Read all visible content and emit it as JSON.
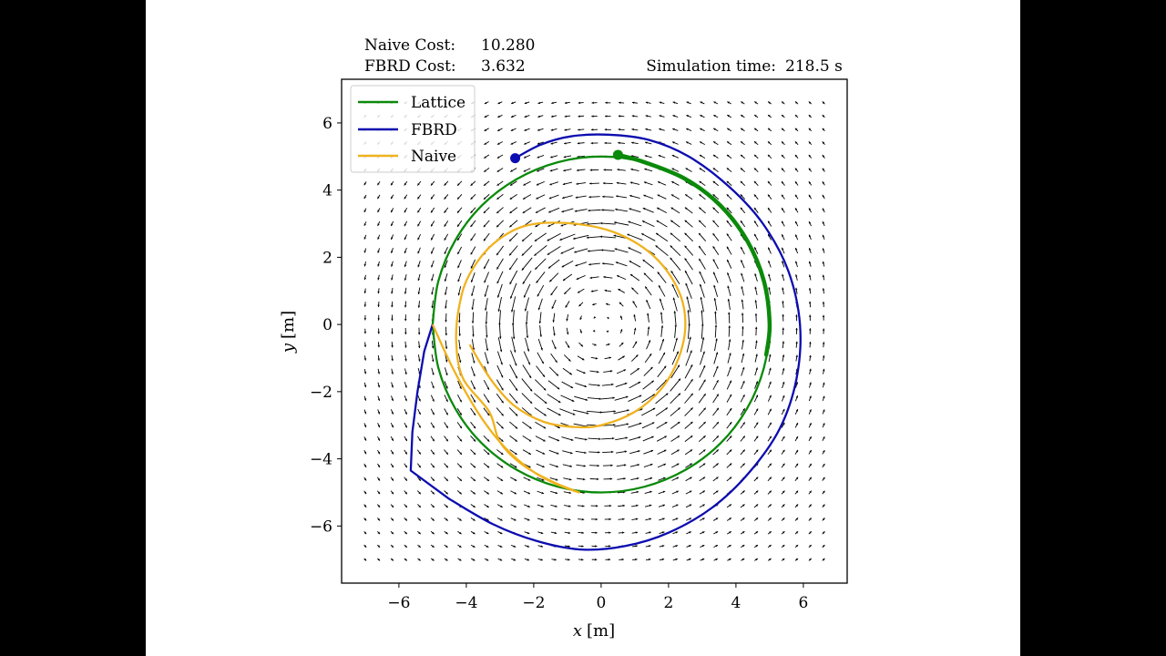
{
  "header": {
    "naive_cost_label": "Naive Cost:",
    "naive_cost_value": "10.280",
    "fbrd_cost_label": "FBRD Cost:",
    "fbrd_cost_value": "3.632",
    "sim_time_label": "Simulation time:",
    "sim_time_value": "218.5 s"
  },
  "colors": {
    "lattice": "#0a8a0a",
    "fbrd": "#0c0cb0",
    "naive": "#f0b21e",
    "arrow": "#000000",
    "frame": "#000000"
  },
  "chart_data": {
    "type": "line",
    "xlabel_var": "x",
    "xlabel_unit": "[m]",
    "ylabel_var": "y",
    "ylabel_unit": "[m]",
    "xlim": [
      -7.7,
      7.3
    ],
    "ylim": [
      -7.7,
      7.3
    ],
    "xticks": [
      -6,
      -4,
      -2,
      0,
      2,
      4,
      6
    ],
    "yticks": [
      -6,
      -4,
      -2,
      0,
      2,
      4,
      6
    ],
    "tick_labels": [
      "−6",
      "−4",
      "−2",
      "0",
      "2",
      "4",
      "6"
    ],
    "grid": false,
    "legend": {
      "position": "top-left",
      "entries": [
        {
          "label": "Lattice",
          "series": "lattice"
        },
        {
          "label": "FBRD",
          "series": "fbrd"
        },
        {
          "label": "Naive",
          "series": "naive"
        }
      ]
    },
    "quiver": {
      "x_range": [
        -7,
        6.7
      ],
      "y_range": [
        -7,
        6.7
      ],
      "spacing": 0.4,
      "field": "vortex centered at origin, counter-clockwise",
      "core_radius": 2.8
    },
    "series": [
      {
        "name": "lattice",
        "label": "Lattice",
        "color": "#0a8a0a",
        "points": [
          [
            -5,
            0
          ],
          [
            -4.83,
            1.29
          ],
          [
            -4.33,
            2.5
          ],
          [
            -3.54,
            3.54
          ],
          [
            -2.5,
            4.33
          ],
          [
            -1.29,
            4.83
          ],
          [
            0,
            5
          ],
          [
            1.29,
            4.83
          ],
          [
            2.5,
            4.33
          ],
          [
            3.54,
            3.54
          ],
          [
            4.33,
            2.5
          ],
          [
            4.83,
            1.29
          ],
          [
            5,
            0
          ],
          [
            4.83,
            -1.29
          ],
          [
            4.33,
            -2.5
          ],
          [
            3.54,
            -3.54
          ],
          [
            2.5,
            -4.33
          ],
          [
            1.29,
            -4.83
          ],
          [
            0,
            -5
          ],
          [
            -1.29,
            -4.83
          ],
          [
            -2.5,
            -4.33
          ],
          [
            -3.54,
            -3.54
          ],
          [
            -4.33,
            -2.5
          ],
          [
            -4.83,
            -1.29
          ],
          [
            -5,
            0
          ]
        ],
        "thick_segment": [
          [
            0.5,
            5.05
          ],
          [
            1.29,
            4.83
          ],
          [
            2.5,
            4.33
          ],
          [
            3.54,
            3.54
          ],
          [
            4.33,
            2.5
          ],
          [
            4.83,
            1.29
          ],
          [
            5,
            0
          ],
          [
            4.9,
            -0.9
          ]
        ],
        "marker": [
          0.5,
          5.05
        ]
      },
      {
        "name": "fbrd",
        "label": "FBRD",
        "color": "#0c0cb0",
        "points": [
          [
            -2.55,
            4.95
          ],
          [
            -1.8,
            5.35
          ],
          [
            -0.9,
            5.6
          ],
          [
            0.2,
            5.65
          ],
          [
            1.4,
            5.5
          ],
          [
            2.6,
            5.0
          ],
          [
            3.8,
            4.1
          ],
          [
            4.8,
            3.0
          ],
          [
            5.55,
            1.6
          ],
          [
            5.9,
            0.0
          ],
          [
            5.8,
            -1.6
          ],
          [
            5.3,
            -3.1
          ],
          [
            4.4,
            -4.4
          ],
          [
            3.3,
            -5.45
          ],
          [
            2.0,
            -6.2
          ],
          [
            0.7,
            -6.6
          ],
          [
            -0.6,
            -6.7
          ],
          [
            -1.9,
            -6.45
          ],
          [
            -3.2,
            -5.95
          ],
          [
            -4.5,
            -5.2
          ],
          [
            -5.65,
            -4.35
          ],
          [
            -5.6,
            -3.2
          ],
          [
            -5.45,
            -2.0
          ],
          [
            -5.25,
            -0.8
          ],
          [
            -5.0,
            0.0
          ]
        ],
        "marker": [
          -2.55,
          4.95
        ]
      },
      {
        "name": "naive",
        "label": "Naive",
        "color": "#f0b21e",
        "points": [
          [
            -5,
            0
          ],
          [
            -4.4,
            -1.3
          ],
          [
            -3.7,
            -2.55
          ],
          [
            -3.0,
            -3.5
          ],
          [
            -2.2,
            -4.25
          ],
          [
            -1.45,
            -4.7
          ],
          [
            -0.65,
            -5.0
          ],
          [
            -1.4,
            -4.7
          ],
          [
            -2.3,
            -4.2
          ],
          [
            -3.0,
            -3.5
          ],
          [
            -3.32,
            -2.6
          ],
          [
            -4.1,
            -1.6
          ],
          [
            -4.3,
            -0.5
          ],
          [
            -4.2,
            0.6
          ],
          [
            -3.9,
            1.5
          ],
          [
            -3.2,
            2.4
          ],
          [
            -2.2,
            2.95
          ],
          [
            -0.8,
            3.0
          ],
          [
            0.5,
            2.7
          ],
          [
            1.6,
            2.0
          ],
          [
            2.3,
            1.0
          ],
          [
            2.5,
            0
          ],
          [
            2.3,
            -1.0
          ],
          [
            1.8,
            -1.9
          ],
          [
            1.0,
            -2.6
          ],
          [
            0,
            -3.0
          ],
          [
            -0.8,
            -3.05
          ],
          [
            -1.7,
            -2.9
          ],
          [
            -2.6,
            -2.4
          ],
          [
            -3.3,
            -1.6
          ],
          [
            -3.9,
            -0.6
          ]
        ]
      }
    ]
  }
}
